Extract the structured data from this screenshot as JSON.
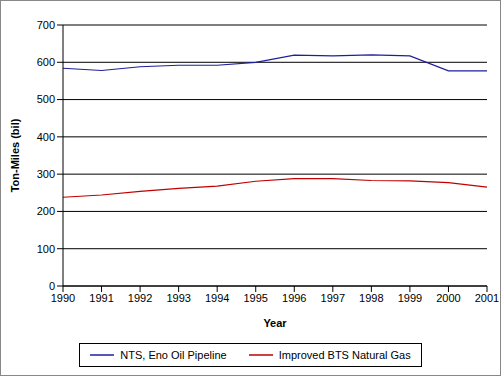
{
  "chart_data": {
    "type": "line",
    "x_label": "Year",
    "y_label": "Ton-Miles (bil)",
    "categories": [
      "1990",
      "1991",
      "1992",
      "1993",
      "1994",
      "1995",
      "1996",
      "1997",
      "1998",
      "1999",
      "2000",
      "2001"
    ],
    "series": [
      {
        "name": "NTS, Eno Oil Pipeline",
        "color": "#1f1f9c",
        "values": [
          584,
          578,
          588,
          592,
          592,
          600,
          619,
          617,
          620,
          617,
          577,
          577
        ]
      },
      {
        "name": "Improved BTS Natural Gas",
        "color": "#c00000",
        "values": [
          238,
          244,
          254,
          262,
          268,
          281,
          288,
          288,
          283,
          282,
          277,
          265
        ]
      }
    ],
    "ylim": [
      0,
      700
    ],
    "yticks": [
      0,
      100,
      200,
      300,
      400,
      500,
      600,
      700
    ],
    "grid": true,
    "legend": "bottom"
  }
}
